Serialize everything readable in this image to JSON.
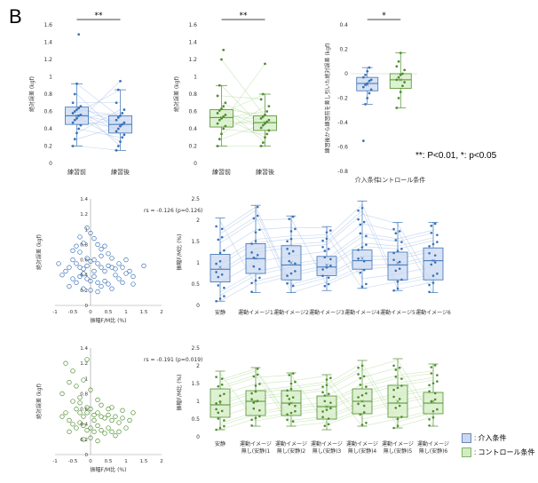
{
  "figure": {
    "panel_letter": "B",
    "significance_legend": "**: P<0.01, *: p<0.05",
    "legend": [
      {
        "label": ": 介入条件",
        "color": "#c9d8f0",
        "edge": "#6a86b8"
      },
      {
        "label": ": コントロール条件",
        "color": "#d4ecc4",
        "edge": "#7fb36a"
      }
    ],
    "colors": {
      "blue": "#3a72b8",
      "blue_light": "#c9d8f0",
      "blue_line": "#a9c1e8",
      "green": "#4e8f2e",
      "green_light": "#d4ecc4",
      "green_line": "#b7dca0"
    }
  },
  "chart_data": [
    {
      "id": "top-left",
      "type": "box",
      "ylabel": "絶対誤差 (kgf)",
      "ylim": [
        0,
        1.6
      ],
      "yticks": [
        "0",
        "0.2",
        "0.4",
        "0.6",
        "0.8",
        "1",
        "1.2",
        "1.4",
        "1.6"
      ],
      "categories": [
        "練習前",
        "練習後"
      ],
      "sig": "**",
      "color": "blue",
      "boxes": [
        {
          "q1": 0.45,
          "median": 0.55,
          "q3": 0.65,
          "min": 0.2,
          "max": 0.92,
          "mean": 0.55,
          "points": [
            0.2,
            0.28,
            0.35,
            0.4,
            0.44,
            0.47,
            0.5,
            0.52,
            0.55,
            0.56,
            0.58,
            0.6,
            0.62,
            0.64,
            0.66,
            0.7,
            0.8,
            0.92,
            1.49
          ]
        },
        {
          "q1": 0.35,
          "median": 0.45,
          "q3": 0.55,
          "min": 0.15,
          "max": 0.85,
          "mean": 0.44,
          "points": [
            0.15,
            0.2,
            0.25,
            0.3,
            0.33,
            0.37,
            0.4,
            0.43,
            0.45,
            0.47,
            0.5,
            0.53,
            0.55,
            0.58,
            0.62,
            0.7,
            0.85,
            0.95
          ]
        }
      ]
    },
    {
      "id": "top-middle",
      "type": "box",
      "ylabel": "絶対誤差 (kgf)",
      "ylim": [
        0,
        1.6
      ],
      "yticks": [
        "0",
        "0.2",
        "0.4",
        "0.6",
        "0.8",
        "1",
        "1.2",
        "1.4",
        "1.6"
      ],
      "categories": [
        "練習前",
        "練習後"
      ],
      "sig": "**",
      "color": "green",
      "boxes": [
        {
          "q1": 0.42,
          "median": 0.53,
          "q3": 0.62,
          "min": 0.2,
          "max": 0.9,
          "mean": 0.53,
          "points": [
            0.2,
            0.28,
            0.34,
            0.4,
            0.43,
            0.46,
            0.5,
            0.52,
            0.54,
            0.56,
            0.58,
            0.61,
            0.63,
            0.66,
            0.7,
            0.78,
            0.9,
            1.2,
            1.31
          ]
        },
        {
          "q1": 0.38,
          "median": 0.47,
          "q3": 0.55,
          "min": 0.2,
          "max": 0.8,
          "mean": 0.47,
          "points": [
            0.2,
            0.24,
            0.3,
            0.34,
            0.38,
            0.41,
            0.44,
            0.46,
            0.48,
            0.5,
            0.52,
            0.54,
            0.56,
            0.6,
            0.66,
            0.74,
            0.8,
            1.15
          ]
        }
      ]
    },
    {
      "id": "top-right",
      "type": "box",
      "ylabel": "練習後から練習前を差し引いた絶対誤差 (kgf)",
      "ylim": [
        -0.8,
        0.4
      ],
      "yticks": [
        "-0.8",
        "-0.6",
        "-0.4",
        "-0.2",
        "0",
        "0.2",
        "0.4"
      ],
      "categories": [
        "介入条件",
        "コントロール条件"
      ],
      "sig": "*",
      "color": "mixed",
      "boxes": [
        {
          "q1": -0.14,
          "median": -0.08,
          "q3": -0.03,
          "min": -0.25,
          "max": 0.05,
          "mean": -0.09,
          "color": "blue",
          "points": [
            -0.55,
            -0.25,
            -0.2,
            -0.16,
            -0.13,
            -0.11,
            -0.09,
            -0.08,
            -0.06,
            -0.05,
            -0.03,
            -0.01,
            0.02,
            0.05
          ]
        },
        {
          "q1": -0.12,
          "median": -0.05,
          "q3": 0.0,
          "min": -0.28,
          "max": 0.17,
          "mean": -0.05,
          "color": "green",
          "points": [
            -0.28,
            -0.2,
            -0.15,
            -0.1,
            -0.07,
            -0.05,
            -0.03,
            -0.01,
            0.0,
            0.03,
            0.06,
            0.1,
            0.17
          ]
        }
      ]
    },
    {
      "id": "middle-scatter",
      "type": "scatter",
      "color": "blue",
      "ylabel": "絶対誤差 (kgf)",
      "xlabel": "振幅F/M比 (%)",
      "xlim": [
        -1,
        2
      ],
      "ylim": [
        0,
        1.4
      ],
      "xticks": [
        "-1",
        "-0.5",
        "0",
        "0.5",
        "1",
        "1.5",
        "2"
      ],
      "yticks": [
        "0",
        "0.2",
        "0.4",
        "0.6",
        "0.8",
        "1",
        "1.2",
        "1.4"
      ],
      "annotation": "rs = -0.126 (p=0.126)",
      "points": [
        [
          -0.4,
          0.78
        ],
        [
          -0.3,
          0.9
        ],
        [
          -0.2,
          0.82
        ],
        [
          -0.1,
          1.02
        ],
        [
          0.0,
          0.95
        ],
        [
          0.1,
          0.88
        ],
        [
          0.2,
          0.8
        ],
        [
          0.3,
          0.74
        ],
        [
          -0.5,
          0.6
        ],
        [
          -0.4,
          0.55
        ],
        [
          -0.3,
          0.5
        ],
        [
          -0.2,
          0.48
        ],
        [
          -0.1,
          0.52
        ],
        [
          0.0,
          0.58
        ],
        [
          0.1,
          0.6
        ],
        [
          0.2,
          0.55
        ],
        [
          0.3,
          0.5
        ],
        [
          0.4,
          0.45
        ],
        [
          0.5,
          0.52
        ],
        [
          0.6,
          0.5
        ],
        [
          0.7,
          0.48
        ],
        [
          0.8,
          0.55
        ],
        [
          0.9,
          0.5
        ],
        [
          1.0,
          0.42
        ],
        [
          1.1,
          0.45
        ],
        [
          1.2,
          0.38
        ],
        [
          1.5,
          0.52
        ],
        [
          -0.7,
          0.45
        ],
        [
          -0.6,
          0.5
        ],
        [
          -0.8,
          0.4
        ],
        [
          -0.5,
          0.35
        ],
        [
          -0.4,
          0.3
        ],
        [
          -0.3,
          0.38
        ],
        [
          -0.2,
          0.42
        ],
        [
          -0.1,
          0.35
        ],
        [
          0.0,
          0.32
        ],
        [
          0.1,
          0.38
        ],
        [
          0.2,
          0.3
        ],
        [
          0.3,
          0.25
        ],
        [
          0.4,
          0.32
        ],
        [
          0.5,
          0.28
        ],
        [
          0.6,
          0.22
        ],
        [
          0.0,
          0.2
        ],
        [
          0.2,
          0.18
        ],
        [
          -0.2,
          0.22
        ],
        [
          0.1,
          0.45
        ],
        [
          -0.1,
          0.62
        ],
        [
          0.3,
          0.65
        ],
        [
          0.5,
          0.68
        ],
        [
          -0.3,
          0.7
        ],
        [
          -0.6,
          0.25
        ],
        [
          1.2,
          0.28
        ],
        [
          0.8,
          0.35
        ],
        [
          0.9,
          0.3
        ],
        [
          -0.9,
          0.55
        ],
        [
          -0.5,
          0.72
        ],
        [
          0.4,
          0.78
        ],
        [
          0.6,
          0.62
        ],
        [
          0.7,
          0.4
        ],
        [
          1.0,
          0.6
        ]
      ]
    },
    {
      "id": "middle-box",
      "type": "box",
      "color": "blue",
      "ylabel": "振幅F/M比 (%)",
      "ylim": [
        0,
        2.5
      ],
      "yticks": [
        "0",
        "0.5",
        "1",
        "1.5",
        "2",
        "2.5"
      ],
      "categories": [
        "安静",
        "運動イメージ1",
        "運動イメージ2",
        "運動イメージ3",
        "運動イメージ4",
        "運動イメージ5",
        "運動イメージ6"
      ],
      "boxes": [
        {
          "q1": 0.55,
          "median": 0.85,
          "q3": 1.2,
          "min": 0.1,
          "max": 2.05,
          "mean": 0.9
        },
        {
          "q1": 0.75,
          "median": 1.1,
          "q3": 1.45,
          "min": 0.3,
          "max": 2.35,
          "mean": 1.1
        },
        {
          "q1": 0.6,
          "median": 0.95,
          "q3": 1.4,
          "min": 0.3,
          "max": 2.1,
          "mean": 1.0
        },
        {
          "q1": 0.7,
          "median": 0.9,
          "q3": 1.15,
          "min": 0.35,
          "max": 1.85,
          "mean": 0.95
        },
        {
          "q1": 0.85,
          "median": 1.05,
          "q3": 1.3,
          "min": 0.4,
          "max": 2.45,
          "mean": 1.1
        },
        {
          "q1": 0.6,
          "median": 0.95,
          "q3": 1.25,
          "min": 0.35,
          "max": 1.95,
          "mean": 1.0
        },
        {
          "q1": 0.6,
          "median": 1.05,
          "q3": 1.35,
          "min": 0.3,
          "max": 1.95,
          "mean": 1.05
        }
      ]
    },
    {
      "id": "bottom-scatter",
      "type": "scatter",
      "color": "green",
      "ylabel": "絶対誤差 (kgf)",
      "xlabel": "振幅F/M比 (%)",
      "xlim": [
        -1,
        2
      ],
      "ylim": [
        0,
        1.4
      ],
      "xticks": [
        "-1",
        "-0.5",
        "0",
        "0.5",
        "1",
        "1.5",
        "2"
      ],
      "yticks": [
        "0",
        "0.2",
        "0.4",
        "0.6",
        "0.8",
        "1",
        "1.2",
        "1.4"
      ],
      "annotation": "rs = -0.191 (p=0.019)",
      "points": [
        [
          -0.7,
          1.2
        ],
        [
          -0.5,
          1.1
        ],
        [
          -0.1,
          1.25
        ],
        [
          -0.6,
          0.95
        ],
        [
          -0.4,
          0.9
        ],
        [
          -0.2,
          0.98
        ],
        [
          0.0,
          0.85
        ],
        [
          -0.8,
          0.8
        ],
        [
          -0.3,
          0.75
        ],
        [
          -0.5,
          0.7
        ],
        [
          -0.4,
          0.6
        ],
        [
          -0.3,
          0.55
        ],
        [
          -0.2,
          0.5
        ],
        [
          -0.1,
          0.55
        ],
        [
          0.0,
          0.6
        ],
        [
          0.1,
          0.52
        ],
        [
          0.2,
          0.55
        ],
        [
          0.3,
          0.5
        ],
        [
          0.4,
          0.48
        ],
        [
          0.5,
          0.52
        ],
        [
          0.6,
          0.45
        ],
        [
          0.7,
          0.5
        ],
        [
          0.8,
          0.42
        ],
        [
          0.9,
          0.48
        ],
        [
          1.1,
          0.45
        ],
        [
          1.2,
          0.55
        ],
        [
          -0.6,
          0.45
        ],
        [
          -0.5,
          0.4
        ],
        [
          -0.4,
          0.35
        ],
        [
          -0.3,
          0.42
        ],
        [
          -0.2,
          0.38
        ],
        [
          -0.1,
          0.32
        ],
        [
          0.0,
          0.35
        ],
        [
          0.1,
          0.3
        ],
        [
          0.2,
          0.38
        ],
        [
          0.3,
          0.32
        ],
        [
          0.4,
          0.28
        ],
        [
          0.5,
          0.35
        ],
        [
          0.6,
          0.3
        ],
        [
          0.7,
          0.25
        ],
        [
          0.0,
          0.22
        ],
        [
          -0.2,
          0.2
        ],
        [
          0.2,
          0.18
        ],
        [
          0.1,
          0.45
        ],
        [
          -0.1,
          0.62
        ],
        [
          0.3,
          0.65
        ],
        [
          0.5,
          0.6
        ],
        [
          -0.3,
          0.68
        ],
        [
          0.8,
          0.3
        ],
        [
          1.0,
          0.35
        ],
        [
          -0.7,
          0.55
        ],
        [
          -0.8,
          0.5
        ],
        [
          0.6,
          0.62
        ],
        [
          0.9,
          0.58
        ],
        [
          0.2,
          0.72
        ],
        [
          -0.6,
          0.3
        ]
      ]
    },
    {
      "id": "bottom-box",
      "type": "box",
      "color": "green",
      "ylabel": "振幅F/M比 (%)",
      "ylim": [
        0,
        2.5
      ],
      "yticks": [
        "0",
        "0.5",
        "1",
        "1.5",
        "2",
        "2.5"
      ],
      "categories": [
        "安静",
        "運動イメージ\n無し(安静)1",
        "運動イメージ\n無し(安静)2",
        "運動イメージ\n無し(安静)3",
        "運動イメージ\n無し(安静)4",
        "運動イメージ\n無し(安静)5",
        "運動イメージ\n無し(安静)6"
      ],
      "boxes": [
        {
          "q1": 0.55,
          "median": 0.9,
          "q3": 1.35,
          "min": 0.2,
          "max": 1.85,
          "mean": 0.95
        },
        {
          "q1": 0.6,
          "median": 1.0,
          "q3": 1.3,
          "min": 0.3,
          "max": 1.95,
          "mean": 1.0
        },
        {
          "q1": 0.6,
          "median": 0.95,
          "q3": 1.3,
          "min": 0.3,
          "max": 1.8,
          "mean": 0.95
        },
        {
          "q1": 0.5,
          "median": 0.85,
          "q3": 1.15,
          "min": 0.2,
          "max": 1.75,
          "mean": 0.85
        },
        {
          "q1": 0.65,
          "median": 1.0,
          "q3": 1.35,
          "min": 0.3,
          "max": 2.15,
          "mean": 1.0
        },
        {
          "q1": 0.55,
          "median": 0.95,
          "q3": 1.45,
          "min": 0.25,
          "max": 2.2,
          "mean": 1.0
        },
        {
          "q1": 0.65,
          "median": 0.95,
          "q3": 1.25,
          "min": 0.3,
          "max": 2.05,
          "mean": 1.0
        }
      ]
    }
  ]
}
